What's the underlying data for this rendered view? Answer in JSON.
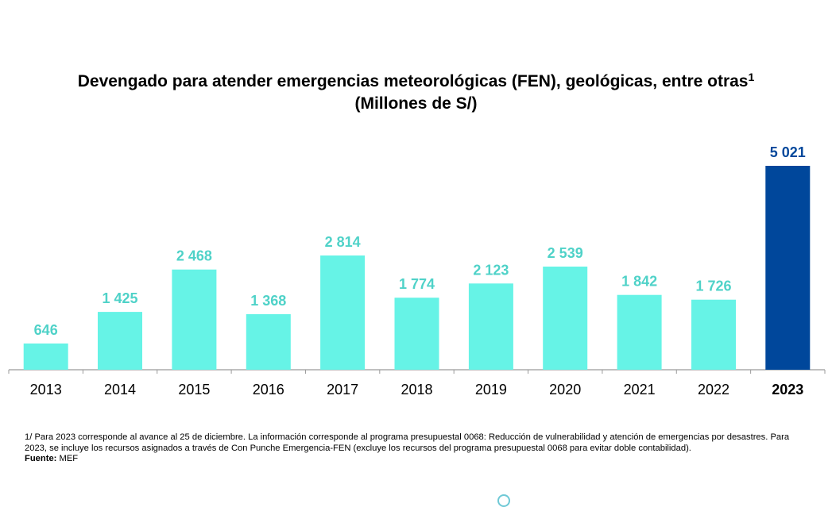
{
  "title": {
    "line1": "Devengado para atender emergencias meteorológicas (FEN),  geológicas, entre otras",
    "superscript": "1",
    "line2": "(Millones de S/)"
  },
  "colors": {
    "bar": "#66f3e6",
    "bar_highlight": "#00479b",
    "label": "#4fd2c8",
    "label_highlight": "#00479b",
    "axis": "#9a9a9a",
    "tick_label": "#000000"
  },
  "chart_data": {
    "type": "bar",
    "title": "Devengado para atender emergencias meteorológicas (FEN),  geológicas, entre otras (Millones de S/)",
    "xlabel": "",
    "ylabel": "",
    "ylim": [
      0,
      5021
    ],
    "grid": false,
    "categories": [
      "2013",
      "2014",
      "2015",
      "2016",
      "2017",
      "2018",
      "2019",
      "2020",
      "2021",
      "2022",
      "2023"
    ],
    "values": [
      646,
      1425,
      2468,
      1368,
      2814,
      1774,
      2123,
      2539,
      1842,
      1726,
      5021
    ],
    "value_labels": [
      "646",
      "1 425",
      "2 468",
      "1 368",
      "2 814",
      "1 774",
      "2 123",
      "2 539",
      "1 842",
      "1 726",
      "5 021"
    ],
    "highlight_category": "2023"
  },
  "footnote": {
    "text": "1/ Para 2023 corresponde al avance al 25 de diciembre. La información corresponde al programa presupuestal 0068: Reducción de vulnerabilidad y atención de emergencias por desastres. Para 2023, se incluye los recursos asignados a través de Con Punche Emergencia-FEN (excluye los recursos del programa presupuestal 0068 para evitar doble contabilidad).",
    "source_label": "Fuente:",
    "source_value": " MEF"
  }
}
